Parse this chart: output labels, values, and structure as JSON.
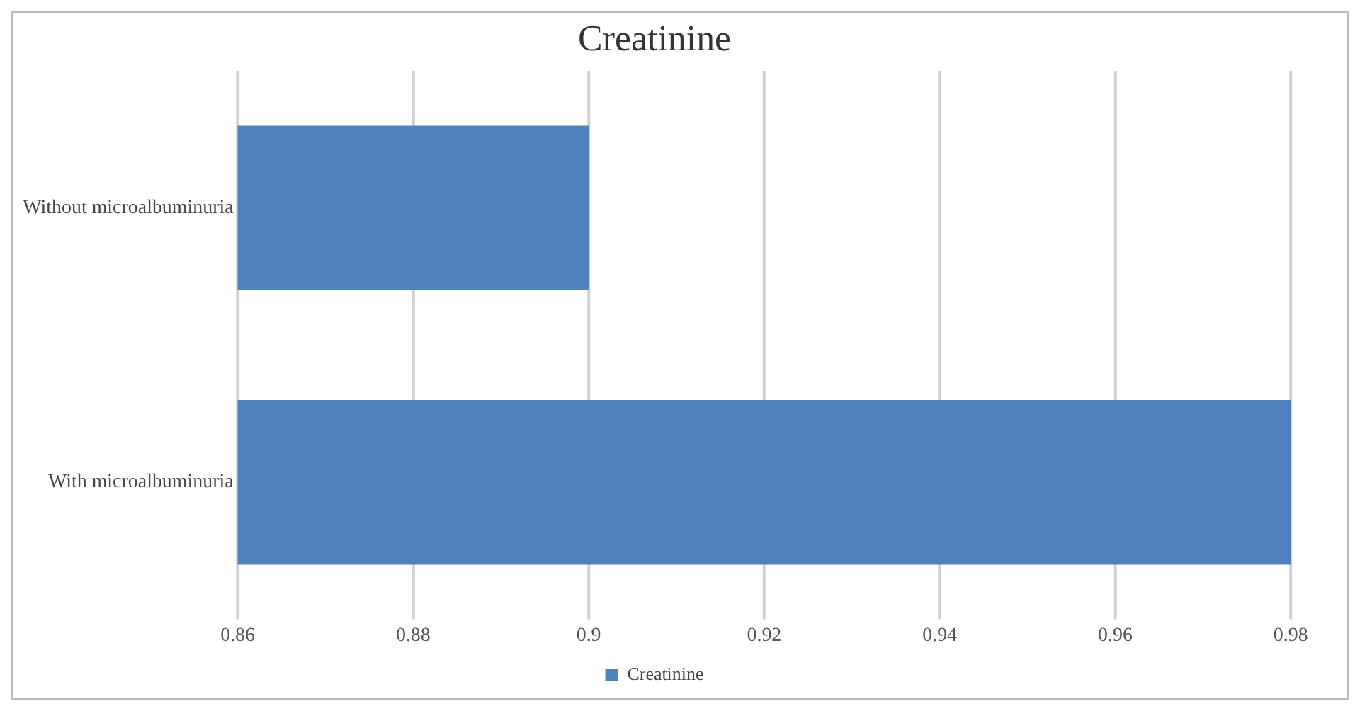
{
  "chart_data": {
    "type": "bar",
    "title": "Creatinine",
    "orientation": "horizontal",
    "categories": [
      "Without microalbuminuria",
      "With microalbuminuria"
    ],
    "series": [
      {
        "name": "Creatinine",
        "color": "#4f81bd",
        "values": [
          0.9,
          0.98
        ]
      }
    ],
    "xlim": [
      0.86,
      0.98
    ],
    "xticks": [
      0.86,
      0.88,
      0.9,
      0.92,
      0.94,
      0.96,
      0.98
    ],
    "grid": "x",
    "legend": "bottom"
  }
}
